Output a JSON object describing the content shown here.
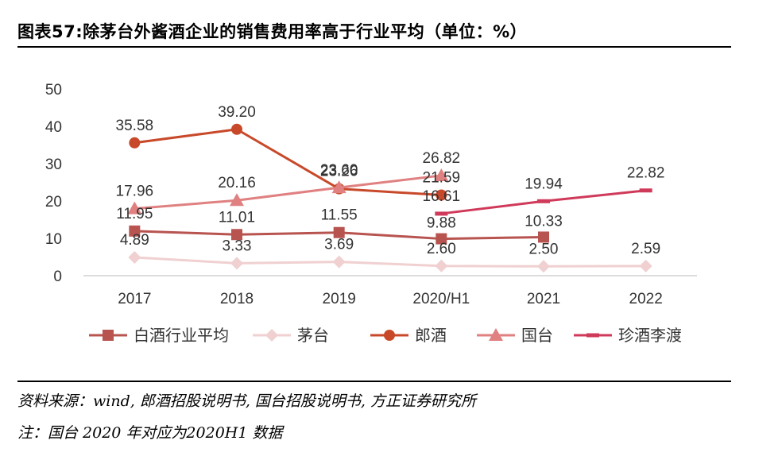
{
  "title": "图表57:除茅台外酱酒企业的销售费用率高于行业平均（单位：%）",
  "source": "资料来源：wind, 郎酒招股说明书, 国台招股说明书, 方正证券研究所",
  "footnote": "注：国台 2020 年对应为2020H1 数据",
  "chart_data": {
    "type": "line",
    "categories": [
      "2017",
      "2018",
      "2019",
      "2020/H1",
      "2021",
      "2022"
    ],
    "ylim": [
      0,
      50
    ],
    "yticks": [
      0,
      10,
      20,
      30,
      40,
      50
    ],
    "grid": false,
    "legend_position": "bottom",
    "series": [
      {
        "name": "白酒行业平均",
        "color": "#b85450",
        "marker": "square",
        "values": [
          11.95,
          11.01,
          11.55,
          9.88,
          10.33,
          null
        ],
        "labels": [
          "11.95",
          "11.01",
          "11.55",
          "9.88",
          "10.33",
          null
        ]
      },
      {
        "name": "茅台",
        "color": "#f0d0d0",
        "marker": "diamond",
        "values": [
          4.89,
          3.33,
          3.69,
          2.6,
          2.5,
          2.59
        ],
        "labels": [
          "4.89",
          "3.33",
          "3.69",
          "2.60",
          "2.50",
          "2.59"
        ]
      },
      {
        "name": "郎酒",
        "color": "#c8492a",
        "marker": "circle",
        "values": [
          35.58,
          39.2,
          23.26,
          21.59,
          null,
          null
        ],
        "labels": [
          "35.58",
          "39.20",
          "23.26",
          "21.59",
          null,
          null
        ]
      },
      {
        "name": "国台",
        "color": "#e08080",
        "marker": "triangle",
        "values": [
          17.96,
          20.16,
          23.6,
          26.82,
          null,
          null
        ],
        "labels": [
          "17.96",
          "20.16",
          "23.60",
          "26.82",
          null,
          null
        ]
      },
      {
        "name": "珍酒李渡",
        "color": "#d03a5a",
        "marker": "dash",
        "values": [
          null,
          null,
          null,
          16.61,
          19.94,
          22.82
        ],
        "labels": [
          null,
          null,
          null,
          "16.61",
          "19.94",
          "22.82"
        ]
      }
    ]
  }
}
